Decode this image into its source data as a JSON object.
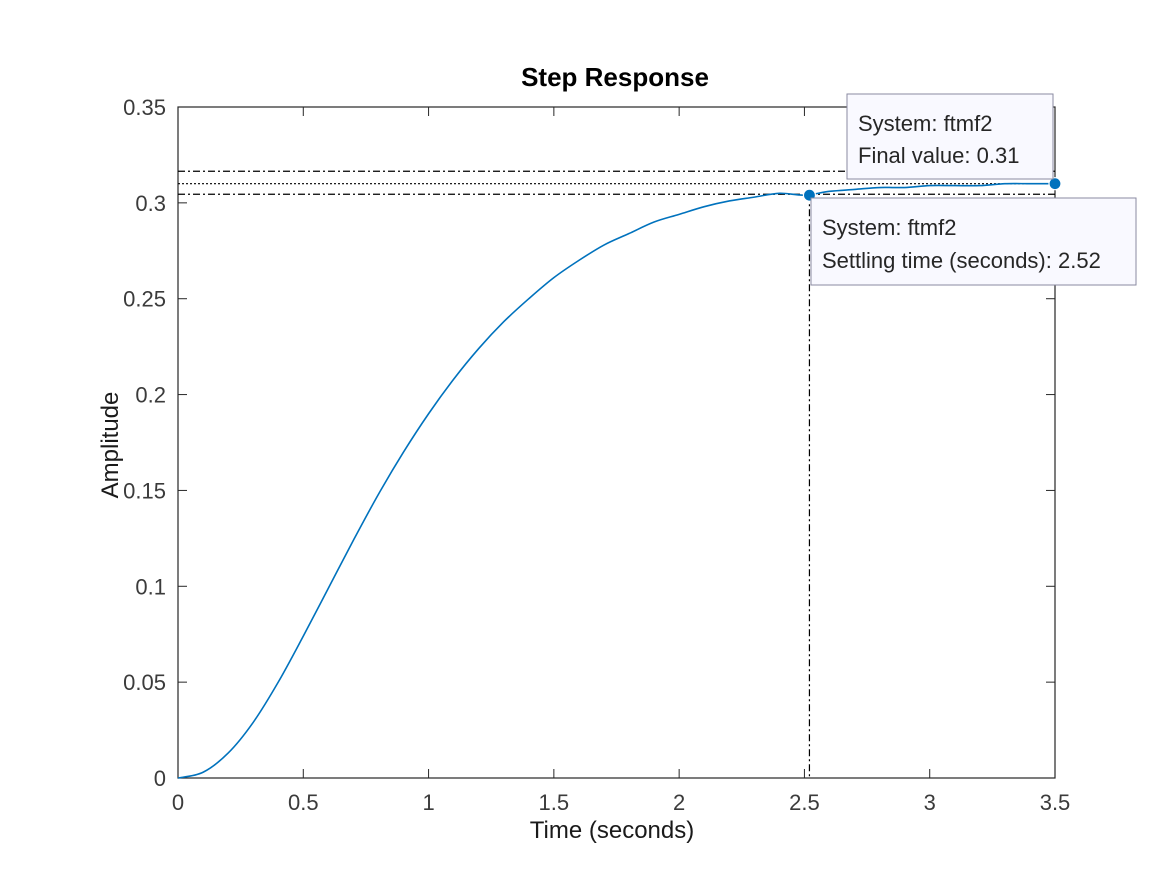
{
  "chart_data": {
    "type": "line",
    "title": "Step Response",
    "xlabel": "Time (seconds)",
    "ylabel": "Amplitude",
    "xlim": [
      0,
      3.5
    ],
    "ylim": [
      0,
      0.35
    ],
    "x_ticks": [
      "0",
      "0.5",
      "1",
      "1.5",
      "2",
      "2.5",
      "3",
      "3.5"
    ],
    "y_ticks": [
      "0",
      "0.05",
      "0.1",
      "0.15",
      "0.2",
      "0.25",
      "0.3",
      "0.35"
    ],
    "x_tick_values": [
      0,
      0.5,
      1,
      1.5,
      2,
      2.5,
      3,
      3.5
    ],
    "y_tick_values": [
      0,
      0.05,
      0.1,
      0.15,
      0.2,
      0.25,
      0.3,
      0.35
    ],
    "grid": false,
    "line_color": "#0072BD",
    "series": [
      {
        "x": [
          0,
          0.1,
          0.2,
          0.3,
          0.4,
          0.5,
          0.6,
          0.7,
          0.8,
          0.9,
          1.0,
          1.1,
          1.2,
          1.3,
          1.4,
          1.5,
          1.6,
          1.7,
          1.8,
          1.9,
          2.0,
          2.1,
          2.2,
          2.3,
          2.4,
          2.5,
          2.6,
          2.7,
          2.8,
          2.9,
          3.0,
          3.1,
          3.2,
          3.3,
          3.4,
          3.5
        ],
        "values": [
          0,
          0.003,
          0.013,
          0.029,
          0.05,
          0.074,
          0.099,
          0.124,
          0.148,
          0.17,
          0.19,
          0.208,
          0.224,
          0.238,
          0.25,
          0.261,
          0.27,
          0.278,
          0.284,
          0.29,
          0.294,
          0.298,
          0.301,
          0.303,
          0.305,
          0.304,
          0.306,
          0.307,
          0.308,
          0.308,
          0.309,
          0.309,
          0.309,
          0.31,
          0.31,
          0.31
        ]
      }
    ],
    "reference_lines": {
      "final_value": 0.31,
      "settling_band": [
        0.3045,
        0.3165
      ],
      "settling_time": 2.52
    },
    "markers": [
      {
        "x": 3.5,
        "y": 0.31
      },
      {
        "x": 2.52,
        "y": 0.304
      }
    ],
    "datatips": [
      {
        "line1": "System: ftmf2",
        "line2": "Final value: 0.31"
      },
      {
        "line1": "System: ftmf2",
        "line2": "Settling time (seconds): 2.52"
      }
    ]
  }
}
